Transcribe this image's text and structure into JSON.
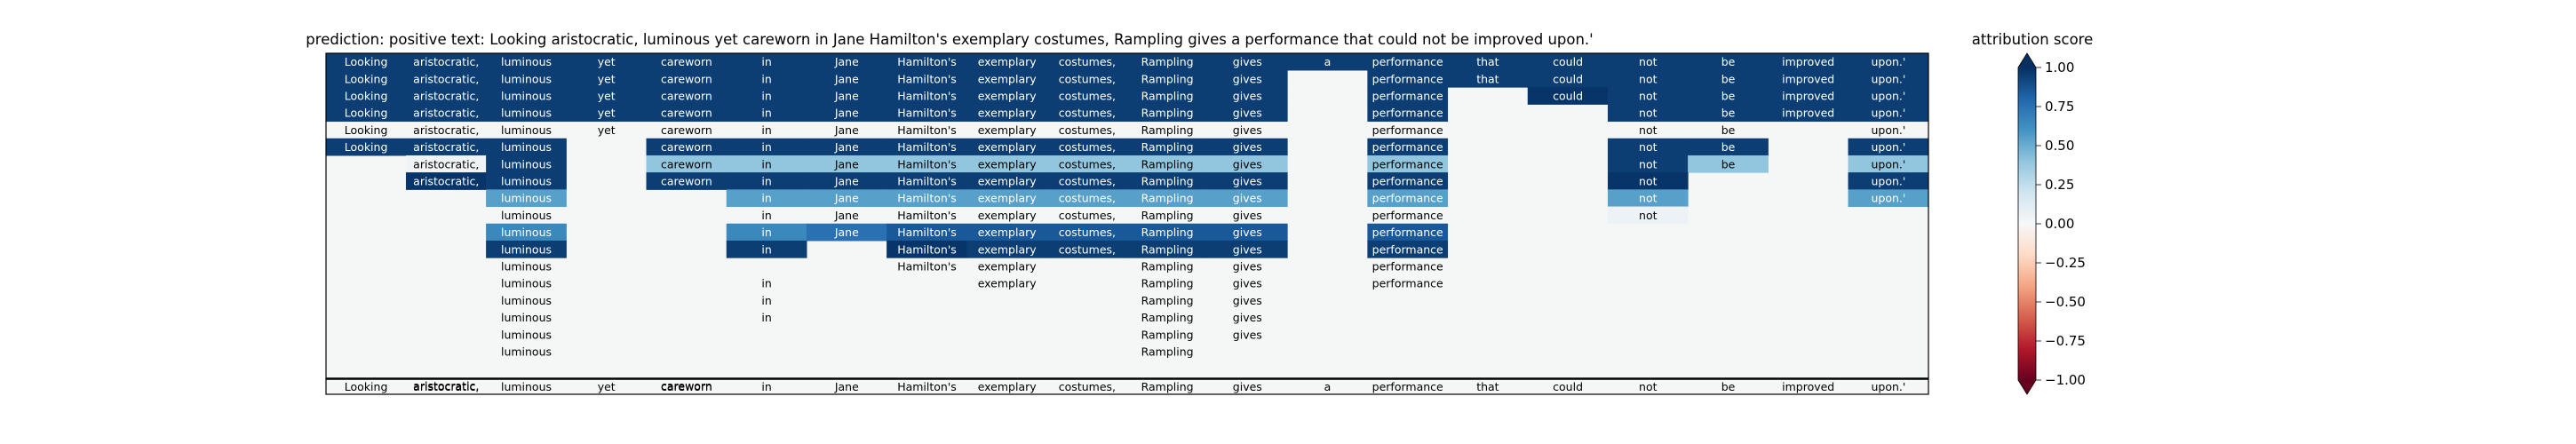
{
  "chart_data": {
    "type": "heatmap",
    "title": "prediction:  positive      text:  Looking aristocratic, luminous yet careworn in Jane Hamilton's exemplary costumes, Rampling gives a performance that could not be improved upon.'",
    "tokens": [
      "Looking",
      "aristocratic,",
      "luminous",
      "yet",
      "careworn",
      "in",
      "Jane",
      "Hamilton's",
      "exemplary",
      "costumes,",
      "Rampling",
      "gives",
      "a",
      "performance",
      "that",
      "could",
      "not",
      "be",
      "improved",
      "upon.'"
    ],
    "rows": [
      {
        "cells": [
          1,
          1,
          1,
          1,
          1,
          1,
          1,
          1,
          1,
          1,
          1,
          1,
          1,
          1,
          1,
          1,
          1,
          1,
          1,
          1
        ],
        "values": [
          0.95,
          0.95,
          0.95,
          0.95,
          0.95,
          0.95,
          0.95,
          0.95,
          0.95,
          0.95,
          0.95,
          0.95,
          0.95,
          0.95,
          0.95,
          0.95,
          0.95,
          0.95,
          0.95,
          0.95
        ]
      },
      {
        "cells": [
          1,
          1,
          1,
          1,
          1,
          1,
          1,
          1,
          1,
          1,
          1,
          1,
          0,
          1,
          1,
          1,
          1,
          1,
          1,
          1
        ],
        "values": [
          0.95,
          0.95,
          0.95,
          0.95,
          0.95,
          0.95,
          0.95,
          0.95,
          0.95,
          0.95,
          0.95,
          0.95,
          0,
          0.95,
          0.95,
          0.95,
          0.95,
          0.95,
          0.95,
          0.95
        ]
      },
      {
        "cells": [
          1,
          1,
          1,
          1,
          1,
          1,
          1,
          1,
          1,
          1,
          1,
          1,
          0,
          1,
          0,
          1,
          1,
          1,
          1,
          1
        ],
        "values": [
          0.95,
          0.95,
          0.95,
          0.95,
          0.95,
          0.95,
          0.95,
          0.95,
          0.95,
          0.95,
          0.95,
          0.95,
          0,
          0.95,
          0,
          0.98,
          0.95,
          0.95,
          0.95,
          0.95
        ]
      },
      {
        "cells": [
          1,
          1,
          1,
          1,
          1,
          1,
          1,
          1,
          1,
          1,
          1,
          1,
          0,
          1,
          0,
          0,
          1,
          1,
          1,
          1
        ],
        "values": [
          0.95,
          0.95,
          0.95,
          0.95,
          0.95,
          0.95,
          0.95,
          0.95,
          0.95,
          0.95,
          0.95,
          0.95,
          0,
          0.95,
          0,
          0,
          0.95,
          0.95,
          0.95,
          0.95
        ]
      },
      {
        "cells": [
          1,
          1,
          1,
          1,
          1,
          1,
          1,
          1,
          1,
          1,
          1,
          1,
          0,
          1,
          0,
          0,
          1,
          1,
          0,
          1
        ],
        "values": [
          0,
          0,
          0,
          0,
          0,
          0,
          0,
          0,
          0,
          0,
          0,
          0,
          0,
          0,
          0,
          0,
          0,
          0,
          0,
          0
        ]
      },
      {
        "cells": [
          1,
          1,
          1,
          0,
          1,
          1,
          1,
          1,
          1,
          1,
          1,
          1,
          0,
          1,
          0,
          0,
          1,
          1,
          0,
          1
        ],
        "values": [
          0.95,
          0.95,
          0.95,
          0,
          0.95,
          0.95,
          0.95,
          0.95,
          0.95,
          0.95,
          0.95,
          0.95,
          0,
          0.95,
          0,
          0,
          0.95,
          0.95,
          0,
          0.95
        ]
      },
      {
        "cells": [
          0,
          1,
          1,
          0,
          1,
          1,
          1,
          1,
          1,
          1,
          1,
          1,
          0,
          1,
          0,
          0,
          1,
          1,
          0,
          1
        ],
        "values": [
          0,
          0.02,
          0.95,
          0,
          0.4,
          0.4,
          0.4,
          0.4,
          0.4,
          0.4,
          0.4,
          0.4,
          0,
          0.4,
          0,
          0,
          0.95,
          0.4,
          0,
          0.4
        ]
      },
      {
        "cells": [
          0,
          1,
          1,
          0,
          1,
          1,
          1,
          1,
          1,
          1,
          1,
          1,
          0,
          1,
          0,
          0,
          1,
          0,
          0,
          1
        ],
        "values": [
          0,
          0.98,
          0.95,
          0,
          0.95,
          0.95,
          0.95,
          0.95,
          0.95,
          0.95,
          0.95,
          0.95,
          0,
          0.95,
          0,
          0,
          0.98,
          0,
          0,
          0.95
        ]
      },
      {
        "cells": [
          0,
          0,
          1,
          0,
          0,
          1,
          1,
          1,
          1,
          1,
          1,
          1,
          0,
          1,
          0,
          0,
          1,
          0,
          0,
          1
        ],
        "values": [
          0,
          0,
          0.55,
          0,
          0,
          0.55,
          0.55,
          0.55,
          0.55,
          0.55,
          0.55,
          0.55,
          0,
          0.55,
          0,
          0,
          0.55,
          0,
          0,
          0.55
        ]
      },
      {
        "cells": [
          0,
          0,
          1,
          0,
          0,
          1,
          1,
          1,
          1,
          1,
          1,
          1,
          0,
          1,
          0,
          0,
          1,
          0,
          0,
          0
        ],
        "values": [
          0,
          0,
          0,
          0,
          0,
          0,
          0,
          0,
          0,
          0,
          0,
          0,
          0,
          0,
          0,
          0,
          0.05,
          0,
          0,
          0
        ]
      },
      {
        "cells": [
          0,
          0,
          1,
          0,
          0,
          1,
          1,
          1,
          1,
          1,
          1,
          1,
          0,
          1,
          0,
          0,
          0,
          0,
          0,
          0
        ],
        "values": [
          0,
          0,
          0.65,
          0,
          0,
          0.65,
          0.75,
          0.85,
          0.85,
          0.85,
          0.85,
          0.85,
          0,
          0.85,
          0,
          0,
          0,
          0,
          0,
          0
        ]
      },
      {
        "cells": [
          0,
          0,
          1,
          0,
          0,
          1,
          0,
          1,
          1,
          1,
          1,
          1,
          0,
          1,
          0,
          0,
          0,
          0,
          0,
          0
        ],
        "values": [
          0,
          0,
          0.95,
          0,
          0,
          0.95,
          0,
          0.98,
          0.95,
          0.95,
          0.95,
          0.95,
          0,
          0.95,
          0,
          0,
          0,
          0,
          0,
          0
        ]
      },
      {
        "cells": [
          0,
          0,
          1,
          0,
          0,
          0,
          0,
          1,
          1,
          0,
          1,
          1,
          0,
          1,
          0,
          0,
          0,
          0,
          0,
          0
        ],
        "values": [
          0,
          0,
          0,
          0,
          0,
          0,
          0,
          0,
          0,
          0,
          0,
          0,
          0,
          0,
          0,
          0,
          0,
          0,
          0,
          0
        ]
      },
      {
        "cells": [
          0,
          0,
          1,
          0,
          0,
          1,
          0,
          0,
          1,
          0,
          1,
          1,
          0,
          1,
          0,
          0,
          0,
          0,
          0,
          0
        ],
        "values": [
          0,
          0,
          0,
          0,
          0,
          0,
          0,
          0,
          0,
          0,
          0,
          0,
          0,
          0,
          0,
          0,
          0,
          0,
          0,
          0
        ]
      },
      {
        "cells": [
          0,
          0,
          1,
          0,
          0,
          1,
          0,
          0,
          0,
          0,
          1,
          1,
          0,
          0,
          0,
          0,
          0,
          0,
          0,
          0
        ],
        "values": [
          0,
          0,
          0,
          0,
          0,
          0,
          0,
          0,
          0,
          0,
          0,
          0,
          0,
          0,
          0,
          0,
          0,
          0,
          0,
          0
        ]
      },
      {
        "cells": [
          0,
          0,
          1,
          0,
          0,
          1,
          0,
          0,
          0,
          0,
          1,
          1,
          0,
          0,
          0,
          0,
          0,
          0,
          0,
          0
        ],
        "values": [
          0,
          0,
          0,
          0,
          0,
          0,
          0,
          0,
          0,
          0,
          0,
          0,
          0,
          0,
          0,
          0,
          0,
          0,
          0,
          0
        ]
      },
      {
        "cells": [
          0,
          0,
          1,
          0,
          0,
          0,
          0,
          0,
          0,
          0,
          1,
          1,
          0,
          0,
          0,
          0,
          0,
          0,
          0,
          0
        ],
        "values": [
          0,
          0,
          0,
          0,
          0,
          0,
          0,
          0,
          0,
          0,
          0,
          0,
          0,
          0,
          0,
          0,
          0,
          0,
          0,
          0
        ]
      },
      {
        "cells": [
          0,
          0,
          1,
          0,
          0,
          0,
          0,
          0,
          0,
          0,
          1,
          0,
          0,
          0,
          0,
          0,
          0,
          0,
          0,
          0
        ],
        "values": [
          0,
          0,
          0,
          0,
          0,
          0,
          0,
          0,
          0,
          0,
          0,
          0,
          0,
          0,
          0,
          0,
          0,
          0,
          0,
          0
        ]
      },
      {
        "cells": [
          0,
          0,
          0,
          0,
          0,
          0,
          0,
          0,
          0,
          0,
          0,
          0,
          0,
          0,
          0,
          0,
          0,
          0,
          0,
          0
        ],
        "values": [
          0,
          0,
          0,
          0,
          0,
          0,
          0,
          0,
          0,
          0,
          0,
          0,
          0,
          0,
          0,
          0,
          0,
          0,
          0,
          0
        ]
      },
      {
        "cells": [
          0,
          1,
          0,
          0,
          1,
          0,
          0,
          0,
          0,
          0,
          0,
          0,
          0,
          0,
          0,
          0,
          0,
          0,
          0,
          0
        ],
        "values": [
          0,
          0,
          0,
          0,
          0,
          0,
          0,
          0,
          0,
          0,
          0,
          0,
          0,
          0,
          0,
          0,
          0,
          0,
          0,
          0
        ]
      }
    ],
    "final_row_values": [
      0,
      0,
      0,
      0,
      0,
      0,
      0,
      0,
      0,
      0,
      0,
      0,
      0,
      0,
      0,
      0,
      0,
      0,
      0,
      0
    ],
    "colorbar": {
      "label": "attribution score",
      "colormap": "RdBu",
      "range": [
        -1.0,
        1.0
      ],
      "ticks": [
        "1.00",
        "0.75",
        "0.50",
        "0.25",
        "0.00",
        "−0.25",
        "−0.50",
        "−0.75",
        "−1.00"
      ],
      "tick_values": [
        1.0,
        0.75,
        0.5,
        0.25,
        0.0,
        -0.25,
        -0.5,
        -0.75,
        -1.0
      ],
      "extend": "both"
    },
    "colors": {
      "neutral": "#f5f6f6",
      "strong_positive": "#053061",
      "strong_negative": "#67001f"
    }
  }
}
